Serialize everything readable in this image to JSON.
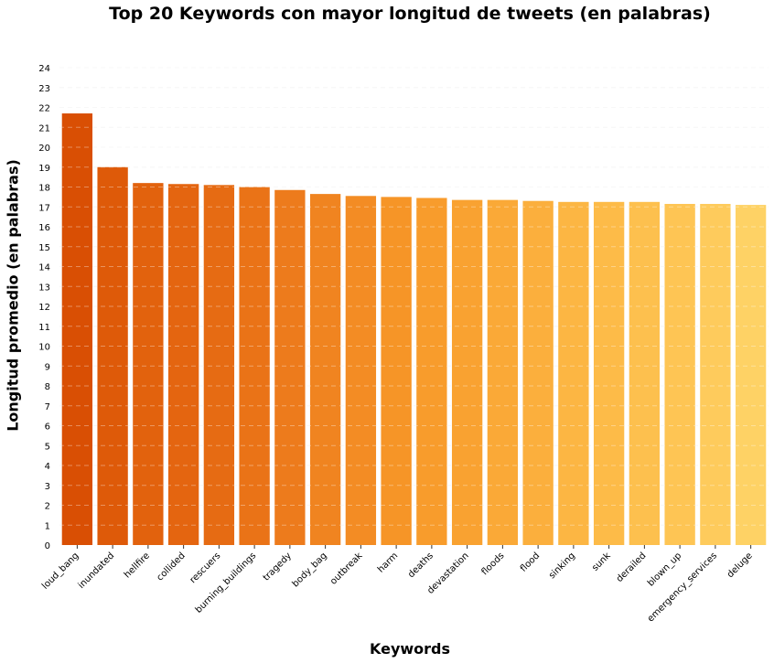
{
  "chart_data": {
    "type": "bar",
    "title": "Top 20 Keywords con mayor longitud de tweets (en palabras)",
    "xlabel": "Keywords",
    "ylabel": "Longitud promedio (en palabras)",
    "categories": [
      "loud_bang",
      "inundated",
      "hellfire",
      "collided",
      "rescuers",
      "burning_buildings",
      "tragedy",
      "body_bag",
      "outbreak",
      "harm",
      "deaths",
      "devastation",
      "floods",
      "flood",
      "sinking",
      "sunk",
      "derailed",
      "blown_up",
      "emergency_services",
      "deluge"
    ],
    "values": [
      21.7,
      19.0,
      18.2,
      18.15,
      18.1,
      18.0,
      17.85,
      17.65,
      17.55,
      17.5,
      17.45,
      17.35,
      17.35,
      17.3,
      17.25,
      17.25,
      17.25,
      17.15,
      17.15,
      17.1
    ],
    "yticks": [
      0,
      1,
      2,
      3,
      4,
      5,
      6,
      7,
      8,
      9,
      10,
      11,
      12,
      13,
      14,
      15,
      16,
      17,
      18,
      19,
      20,
      21,
      22,
      23,
      24
    ],
    "ylim": [
      0,
      24
    ],
    "grid": "horizontal dashed",
    "colors": [
      "#d94f04",
      "#de5a09",
      "#e2620d",
      "#e46510",
      "#e66b13",
      "#ea7317",
      "#ed7b1c",
      "#f08420",
      "#f38c24",
      "#f69527",
      "#f89c2c",
      "#f9a231",
      "#faa937",
      "#fbaf3d",
      "#fcb643",
      "#fdbb48",
      "#fdc04e",
      "#fec554",
      "#fecb5c",
      "#fed265"
    ]
  }
}
